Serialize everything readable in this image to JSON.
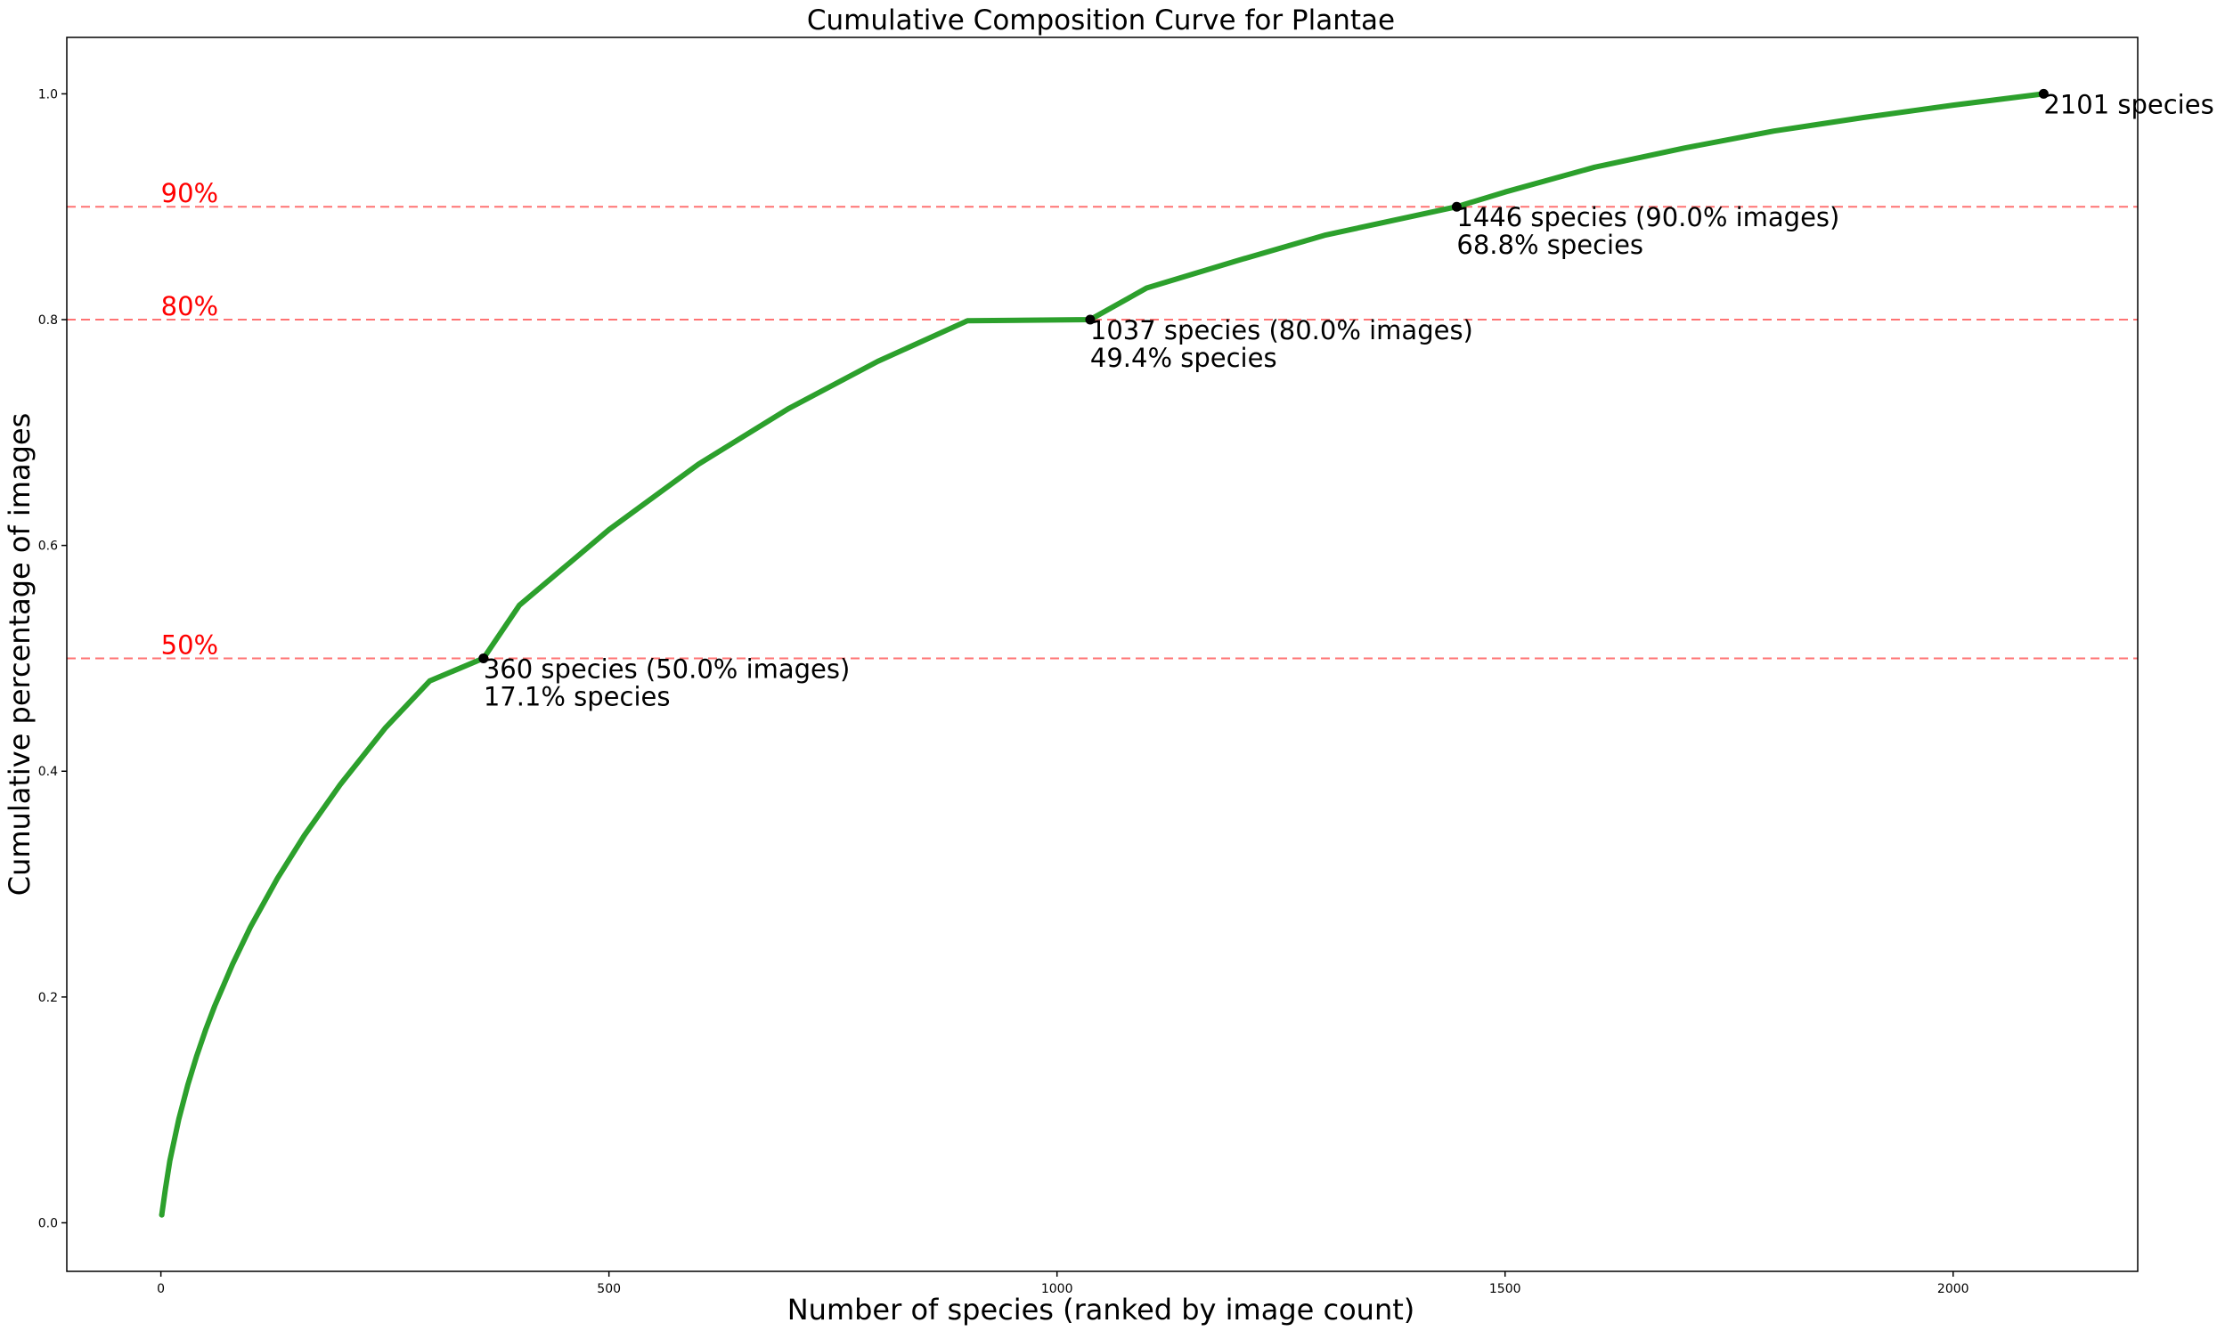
{
  "chart_data": {
    "type": "line",
    "title": "Cumulative Composition Curve for Plantae",
    "xlabel": "Number of species (ranked by image count)",
    "ylabel": "Cumulative percentage of images",
    "xlim": [
      -105,
      2206
    ],
    "ylim": [
      -0.043,
      1.05
    ],
    "xticks": [
      0,
      500,
      1000,
      1500,
      2000
    ],
    "xtick_labels": [
      "0",
      "500",
      "1000",
      "1500",
      "2000"
    ],
    "yticks": [
      0.0,
      0.2,
      0.4,
      0.6,
      0.8,
      1.0
    ],
    "ytick_labels": [
      "0.0",
      "0.2",
      "0.4",
      "0.6",
      "0.8",
      "1.0"
    ],
    "grid": false,
    "legend": "none",
    "line_color": "#2ca02c",
    "threshold_color": "#ff0000",
    "series": [
      {
        "x": [
          1,
          5,
          10,
          20,
          30,
          40,
          50,
          60,
          80,
          100,
          130,
          160,
          200,
          250,
          300,
          360,
          400,
          500,
          600,
          700,
          800,
          900,
          1037,
          1100,
          1200,
          1300,
          1446,
          1500,
          1600,
          1700,
          1800,
          1900,
          2000,
          2101
        ],
        "y": [
          0.007,
          0.03,
          0.055,
          0.092,
          0.122,
          0.148,
          0.171,
          0.192,
          0.229,
          0.262,
          0.305,
          0.343,
          0.388,
          0.438,
          0.48,
          0.5,
          0.547,
          0.614,
          0.672,
          0.721,
          0.763,
          0.799,
          0.8,
          0.828,
          0.852,
          0.875,
          0.9,
          0.913,
          0.935,
          0.952,
          0.967,
          0.979,
          0.99,
          1.0
        ]
      }
    ],
    "thresholds": [
      {
        "y": 0.5,
        "label": "50%"
      },
      {
        "y": 0.8,
        "label": "80%"
      },
      {
        "y": 0.9,
        "label": "90%"
      }
    ],
    "markers": [
      {
        "x": 360,
        "y": 0.5,
        "line1": "360 species (50.0% images)",
        "line2": "17.1% species"
      },
      {
        "x": 1037,
        "y": 0.8,
        "line1": "1037 species (80.0% images)",
        "line2": "49.4% species"
      },
      {
        "x": 1446,
        "y": 0.9,
        "line1": "1446 species (90.0% images)",
        "line2": "68.8% species"
      },
      {
        "x": 2101,
        "y": 1.0,
        "line1": "2101 species",
        "line2": ""
      }
    ]
  }
}
